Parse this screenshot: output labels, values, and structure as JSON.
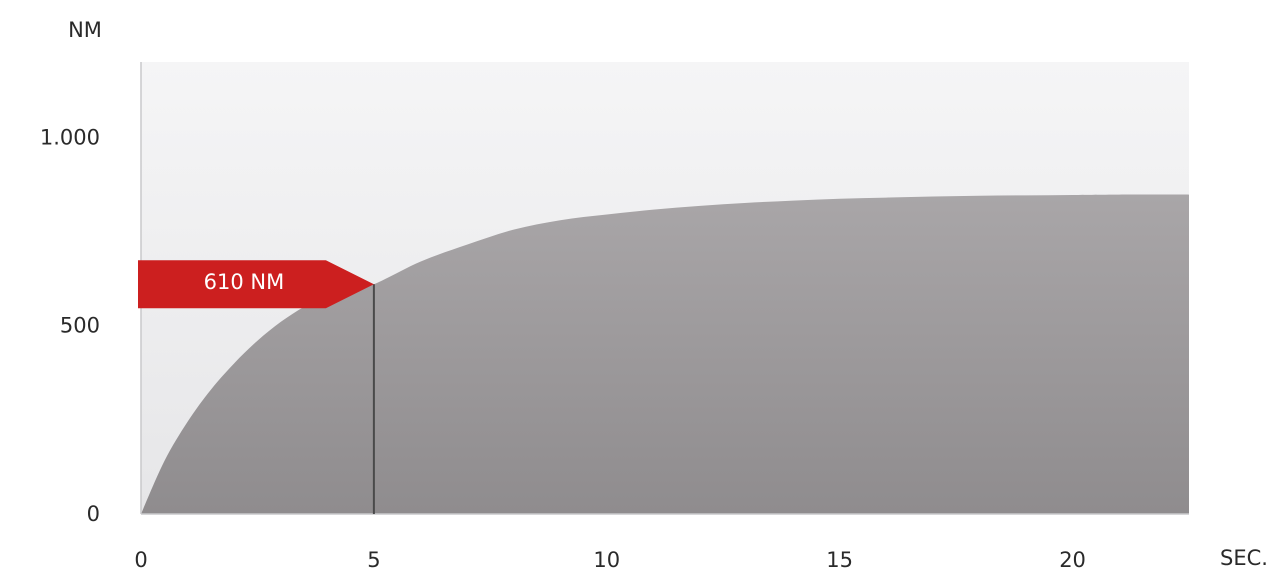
{
  "chart_data": {
    "type": "area",
    "ylabel": "NM",
    "xlabel": "SEC.",
    "xlim": [
      0,
      22.5
    ],
    "ylim": [
      0,
      1200
    ],
    "x_ticks": [
      {
        "value": 0,
        "label": "0"
      },
      {
        "value": 5,
        "label": "5"
      },
      {
        "value": 10,
        "label": "10"
      },
      {
        "value": 15,
        "label": "15"
      },
      {
        "value": 20,
        "label": "20"
      }
    ],
    "y_ticks": [
      {
        "value": 0,
        "label": "0"
      },
      {
        "value": 500,
        "label": "500"
      },
      {
        "value": 1000,
        "label": "1.000"
      }
    ],
    "series": [
      {
        "x": [
          0,
          0.5,
          1,
          1.5,
          2,
          2.5,
          3,
          3.5,
          4,
          4.5,
          5,
          6,
          7,
          8,
          9,
          10,
          11,
          12,
          13,
          14,
          15,
          16,
          17,
          18,
          19,
          20,
          21,
          22.5
        ],
        "values": [
          0,
          140,
          245,
          330,
          400,
          460,
          510,
          550,
          580,
          597,
          610,
          670,
          715,
          755,
          780,
          795,
          808,
          818,
          826,
          832,
          837,
          840,
          843,
          845,
          846,
          847,
          848,
          848
        ]
      }
    ],
    "annotation": {
      "x": 5,
      "y": 610,
      "label": "610 NM"
    },
    "grid": false,
    "colors": {
      "area": "#9b989a",
      "background": "#ebebed",
      "callout": "#cc1f1f",
      "marker_line": "#4a4a4a"
    }
  }
}
